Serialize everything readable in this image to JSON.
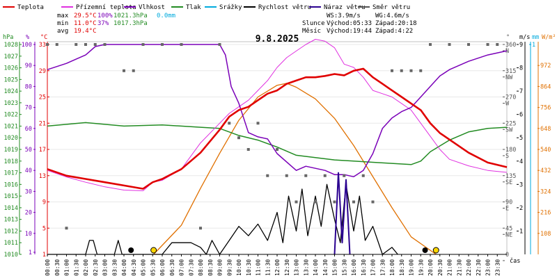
{
  "chart_data": {
    "type": "line",
    "title": "9.8.2025",
    "legend": [
      {
        "label": "Teplota",
        "color": "#e00000"
      },
      {
        "label": "Přízemní teplota",
        "color": "#e030e0"
      },
      {
        "label": "Vlhkost",
        "color": "#7a00b8"
      },
      {
        "label": "Tlak",
        "color": "#228B22"
      },
      {
        "label": "Srážky",
        "color": "#00aadd"
      },
      {
        "label": "Rychlost větru",
        "color": "#000000"
      },
      {
        "label": "Náraz větru",
        "color": "#2a0090"
      },
      {
        "label": "Směr větru",
        "color": "#555555"
      }
    ],
    "stats": {
      "max": {
        "label": "max",
        "temp": "29.5°C",
        "hum": "100%",
        "press": "1021.3hPa",
        "rain": "0.0mm"
      },
      "min": {
        "label": "min",
        "temp": "11.0°C",
        "hum": "37%",
        "press": "1017.3hPa"
      },
      "avg": {
        "label": "avg",
        "temp": "19.4°C"
      }
    },
    "wind": {
      "ws": "WS:3.9m/s",
      "wg": "WG:4.6m/s"
    },
    "sun": {
      "label": "Slunce",
      "rise": "Východ:05:33",
      "set": "Západ:20:18"
    },
    "moon": {
      "label": "Měsíc",
      "rise": "Východ:19:44",
      "set": "Západ:4:22"
    },
    "axes": {
      "hpa": {
        "label": "hPa",
        "ticks": [
          "1028",
          "1027",
          "1026",
          "1025",
          "1024",
          "1023",
          "1022",
          "1021",
          "1020",
          "1019",
          "1018",
          "1017",
          "1016",
          "1015",
          "1014",
          "1013",
          "1012",
          "1011",
          "1010"
        ],
        "range": [
          1010,
          1028
        ]
      },
      "pct": {
        "label": "%",
        "ticks": [
          "100",
          "90",
          "80",
          "70",
          "60",
          "50",
          "40",
          "30",
          "20",
          "10",
          "1"
        ]
      },
      "c": {
        "label": "°C",
        "ticks": [
          "33",
          "29",
          "25",
          "21",
          "17",
          "13",
          "9",
          "5",
          "1"
        ],
        "range": [
          1,
          33
        ]
      },
      "deg": {
        "label": "°",
        "ticks": [
          "360",
          "315",
          "270",
          "225",
          "180",
          "135",
          "90",
          "45",
          "0"
        ]
      },
      "dir": {
        "ticks": [
          "N",
          "NW",
          "W",
          "SW",
          "S",
          "SE",
          "E",
          "NE",
          ""
        ]
      },
      "ms": {
        "label": "m/s",
        "ticks": [
          "9",
          "8",
          "7",
          "6",
          "5",
          "4",
          "3",
          "2",
          "1"
        ],
        "range": [
          0,
          9
        ]
      },
      "mm": {
        "label": "mm",
        "ticks": [
          "1"
        ]
      },
      "wm2": {
        "label": "W/m²",
        "ticks": [
          "972",
          "864",
          "756",
          "648",
          "540",
          "432",
          "324",
          "216",
          "108"
        ]
      },
      "xlabel": "čas"
    },
    "x_ticks": [
      "00:00",
      "00:30",
      "01:00",
      "01:30",
      "02:00",
      "02:30",
      "03:00",
      "03:30",
      "04:00",
      "04:30",
      "05:00",
      "05:30",
      "06:00",
      "06:30",
      "07:00",
      "07:30",
      "08:00",
      "08:30",
      "09:00",
      "09:30",
      "10:00",
      "10:30",
      "11:00",
      "11:30",
      "12:00",
      "12:30",
      "13:00",
      "13:30",
      "14:00",
      "14:30",
      "15:00",
      "15:30",
      "16:00",
      "16:30",
      "17:00",
      "17:30",
      "18:00",
      "18:30",
      "19:00",
      "19:30",
      "20:00",
      "20:30",
      "21:00",
      "21:30",
      "22:00",
      "22:30",
      "23:00",
      "23:30"
    ],
    "series": [
      {
        "name": "Teplota",
        "unit": "°C",
        "points": [
          [
            0,
            14
          ],
          [
            1,
            13
          ],
          [
            2,
            12.5
          ],
          [
            3,
            12
          ],
          [
            4,
            11.5
          ],
          [
            5,
            11
          ],
          [
            5.5,
            12
          ],
          [
            6,
            12.5
          ],
          [
            7,
            14
          ],
          [
            8,
            16.5
          ],
          [
            9,
            20
          ],
          [
            9.5,
            22
          ],
          [
            10,
            23
          ],
          [
            10.5,
            23.5
          ],
          [
            11,
            24.5
          ],
          [
            11.5,
            25.5
          ],
          [
            12,
            26
          ],
          [
            12.5,
            27
          ],
          [
            13,
            27.5
          ],
          [
            13.5,
            28
          ],
          [
            14,
            28
          ],
          [
            14.5,
            28.2
          ],
          [
            15,
            28.5
          ],
          [
            15.5,
            28.3
          ],
          [
            16,
            29
          ],
          [
            16.5,
            29.3
          ],
          [
            17,
            28
          ],
          [
            17.5,
            27
          ],
          [
            18,
            26
          ],
          [
            18.5,
            25
          ],
          [
            19,
            24
          ],
          [
            19.5,
            23
          ],
          [
            20,
            21
          ],
          [
            20.5,
            19.5
          ],
          [
            21,
            18.5
          ],
          [
            22,
            16.5
          ],
          [
            23,
            15
          ],
          [
            24,
            14.3
          ]
        ]
      },
      {
        "name": "Přízemní teplota",
        "unit": "°C",
        "points": [
          [
            0,
            13.8
          ],
          [
            1,
            12.8
          ],
          [
            2,
            12
          ],
          [
            3,
            11.3
          ],
          [
            4,
            10.8
          ],
          [
            5,
            10.7
          ],
          [
            5.5,
            12
          ],
          [
            6,
            12.3
          ],
          [
            7,
            14
          ],
          [
            8,
            18
          ],
          [
            9,
            21
          ],
          [
            9.5,
            22.5
          ],
          [
            10,
            23.5
          ],
          [
            10.5,
            24.5
          ],
          [
            11,
            26
          ],
          [
            11.5,
            27.5
          ],
          [
            12,
            29.5
          ],
          [
            12.5,
            31
          ],
          [
            13,
            32
          ],
          [
            13.5,
            33
          ],
          [
            14,
            33.8
          ],
          [
            14.5,
            33.5
          ],
          [
            15,
            32.5
          ],
          [
            15.5,
            30
          ],
          [
            16,
            29.5
          ],
          [
            16.5,
            28
          ],
          [
            17,
            26
          ],
          [
            17.5,
            25.5
          ],
          [
            18,
            25
          ],
          [
            18.5,
            24
          ],
          [
            19,
            23
          ],
          [
            19.5,
            21
          ],
          [
            20,
            19
          ],
          [
            20.5,
            17
          ],
          [
            21,
            15.5
          ],
          [
            22,
            14.5
          ],
          [
            23,
            13.8
          ],
          [
            24,
            13.5
          ]
        ]
      },
      {
        "name": "Vlhkost",
        "unit": "%",
        "points": [
          [
            0,
            88
          ],
          [
            1,
            91
          ],
          [
            1.5,
            93
          ],
          [
            2,
            95
          ],
          [
            2.5,
            99
          ],
          [
            3,
            100
          ],
          [
            9,
            100
          ],
          [
            9.3,
            95
          ],
          [
            9.6,
            80
          ],
          [
            10,
            72
          ],
          [
            10.5,
            58
          ],
          [
            11,
            56
          ],
          [
            11.5,
            55
          ],
          [
            12,
            48
          ],
          [
            13,
            40
          ],
          [
            13.5,
            42
          ],
          [
            14,
            41
          ],
          [
            14.5,
            40
          ],
          [
            15,
            38
          ],
          [
            15.5,
            38
          ],
          [
            16,
            37
          ],
          [
            16.5,
            40
          ],
          [
            17,
            48
          ],
          [
            17.5,
            60
          ],
          [
            18,
            65
          ],
          [
            18.5,
            68
          ],
          [
            19,
            70
          ],
          [
            19.5,
            75
          ],
          [
            20,
            80
          ],
          [
            20.5,
            85
          ],
          [
            21,
            88
          ],
          [
            22,
            92
          ],
          [
            23,
            95
          ],
          [
            24,
            97
          ]
        ]
      },
      {
        "name": "Tlak",
        "unit": "hPa",
        "points": [
          [
            0,
            1021
          ],
          [
            2,
            1021.3
          ],
          [
            4,
            1021
          ],
          [
            6,
            1021.1
          ],
          [
            8,
            1020.9
          ],
          [
            9,
            1020.8
          ],
          [
            10,
            1020.2
          ],
          [
            11,
            1019.8
          ],
          [
            12,
            1019.2
          ],
          [
            13,
            1018.5
          ],
          [
            14,
            1018.3
          ],
          [
            15,
            1018.1
          ],
          [
            16,
            1018
          ],
          [
            17,
            1017.9
          ],
          [
            18,
            1017.8
          ],
          [
            19,
            1017.7
          ],
          [
            19.5,
            1018
          ],
          [
            20,
            1018.8
          ],
          [
            21,
            1019.8
          ],
          [
            22,
            1020.5
          ],
          [
            23,
            1020.8
          ],
          [
            24,
            1020.9
          ]
        ]
      },
      {
        "name": "Rychlost větru",
        "unit": "m/s",
        "points": [
          [
            0,
            0
          ],
          [
            2,
            0
          ],
          [
            2.2,
            0.6
          ],
          [
            2.4,
            0.6
          ],
          [
            2.6,
            0
          ],
          [
            3.5,
            0
          ],
          [
            3.7,
            0.6
          ],
          [
            3.9,
            0
          ],
          [
            6,
            0
          ],
          [
            6.5,
            0.5
          ],
          [
            7,
            0.5
          ],
          [
            7.5,
            0.5
          ],
          [
            8,
            0.3
          ],
          [
            8.3,
            0
          ],
          [
            8.6,
            0.6
          ],
          [
            9,
            0
          ],
          [
            9.5,
            0.6
          ],
          [
            10,
            1.2
          ],
          [
            10.5,
            0.8
          ],
          [
            11,
            1.3
          ],
          [
            11.5,
            0.6
          ],
          [
            12,
            1.8
          ],
          [
            12.3,
            0.5
          ],
          [
            12.6,
            2.5
          ],
          [
            13,
            1.0
          ],
          [
            13.3,
            2.8
          ],
          [
            13.6,
            0.8
          ],
          [
            14,
            2.5
          ],
          [
            14.3,
            1.2
          ],
          [
            14.6,
            3.0
          ],
          [
            15,
            1.5
          ],
          [
            15.3,
            0.5
          ],
          [
            15.6,
            3.0
          ],
          [
            16,
            1.0
          ],
          [
            16.3,
            2.5
          ],
          [
            16.6,
            0.6
          ],
          [
            17,
            1.2
          ],
          [
            17.5,
            0
          ],
          [
            18,
            0.3
          ],
          [
            18.3,
            0
          ]
        ]
      },
      {
        "name": "Náraz větru",
        "unit": "m/s",
        "points": [
          [
            15,
            0
          ],
          [
            15.2,
            3.5
          ],
          [
            15.4,
            0.5
          ],
          [
            15.6,
            3.2
          ],
          [
            15.8,
            0
          ]
        ]
      },
      {
        "name": "Slunce",
        "unit": "W/m²",
        "points": [
          [
            5.55,
            0
          ],
          [
            7,
            150
          ],
          [
            8,
            340
          ],
          [
            9,
            520
          ],
          [
            10,
            690
          ],
          [
            11,
            810
          ],
          [
            12,
            870
          ],
          [
            12.5,
            880
          ],
          [
            13,
            860
          ],
          [
            14,
            800
          ],
          [
            15,
            700
          ],
          [
            16,
            560
          ],
          [
            17,
            400
          ],
          [
            18,
            240
          ],
          [
            19,
            90
          ],
          [
            20.3,
            0
          ]
        ]
      }
    ],
    "wind_direction_deg": [
      [
        0,
        360
      ],
      [
        0.5,
        360
      ],
      [
        1,
        45
      ],
      [
        1.5,
        360
      ],
      [
        2,
        360
      ],
      [
        2.5,
        360
      ],
      [
        3,
        360
      ],
      [
        4,
        315
      ],
      [
        4.5,
        315
      ],
      [
        5,
        360
      ],
      [
        6,
        360
      ],
      [
        7,
        360
      ],
      [
        8,
        45
      ],
      [
        9,
        360
      ],
      [
        9.5,
        225
      ],
      [
        10,
        200
      ],
      [
        10.5,
        180
      ],
      [
        11,
        225
      ],
      [
        11.5,
        135
      ],
      [
        12,
        180
      ],
      [
        12.5,
        135
      ],
      [
        13,
        90
      ],
      [
        13.5,
        135
      ],
      [
        14,
        90
      ],
      [
        14.5,
        135
      ],
      [
        15,
        90
      ],
      [
        15.5,
        135
      ],
      [
        16,
        90
      ],
      [
        16.5,
        135
      ],
      [
        17,
        90
      ],
      [
        18,
        315
      ],
      [
        18.5,
        315
      ],
      [
        19,
        315
      ],
      [
        19.5,
        315
      ],
      [
        20,
        360
      ],
      [
        21,
        360
      ],
      [
        22,
        360
      ],
      [
        23,
        360
      ],
      [
        23.5,
        360
      ]
    ],
    "markers": [
      {
        "type": "moonset",
        "x": 4.37
      },
      {
        "type": "sunrise",
        "x": 5.55
      },
      {
        "type": "moonrise",
        "x": 19.73
      },
      {
        "type": "sunset",
        "x": 20.3
      }
    ]
  }
}
